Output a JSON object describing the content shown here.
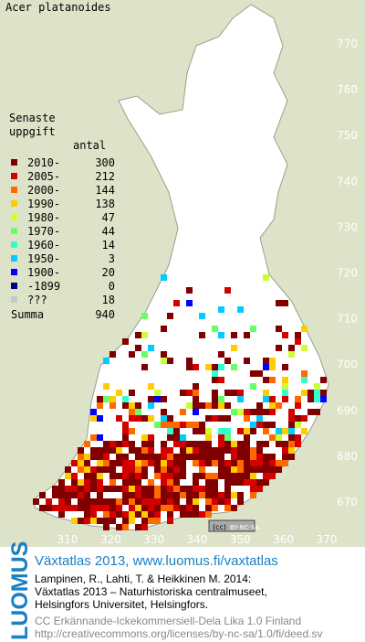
{
  "title": "Acer platanoides",
  "legend": {
    "heading": [
      "Senaste",
      "uppgift"
    ],
    "count_header": "antal",
    "items": [
      {
        "label": "2010-",
        "count": 300,
        "color": "#800000"
      },
      {
        "label": "2005-",
        "count": 212,
        "color": "#d40000"
      },
      {
        "label": "2000-",
        "count": 144,
        "color": "#ff6a00"
      },
      {
        "label": "1990-",
        "count": 138,
        "color": "#ffcc00"
      },
      {
        "label": "1980-",
        "count": 47,
        "color": "#ccff33"
      },
      {
        "label": "1970-",
        "count": 44,
        "color": "#66ff66"
      },
      {
        "label": "1960-",
        "count": 14,
        "color": "#33ffcc"
      },
      {
        "label": "1950-",
        "count": 3,
        "color": "#00ccff"
      },
      {
        "label": "1900-",
        "count": 20,
        "color": "#0000ff"
      },
      {
        "label": "-1899",
        "count": 0,
        "color": "#000080"
      },
      {
        "label": "???",
        "count": 18,
        "color": "#c8c8c8"
      }
    ],
    "total_label": "Summa",
    "total": 940
  },
  "axes": {
    "xticks": [
      310,
      320,
      330,
      340,
      350,
      360,
      370
    ],
    "yticks": [
      670,
      680,
      690,
      700,
      710,
      720,
      730,
      740,
      750,
      760,
      770
    ]
  },
  "badge": "BY-NC-SA",
  "footer": {
    "logo": "LUOMUS",
    "link": "Växtatlas 2013, www.luomus.fi/vaxtatlas",
    "citation": [
      "Lampinen, R., Lahti, T. & Heikkinen M. 2014:",
      "Växtatlas 2013 – Naturhistoriska centralmuseet,",
      "Helsingfors Universitet, Helsingfors."
    ],
    "license": [
      "CC Erkännande-Ickekommersiell-Dela Lika 1.0 Finland",
      "http://creativecommons.org/licenses/by-nc-sa/1.0/fi/deed.sv"
    ]
  }
}
